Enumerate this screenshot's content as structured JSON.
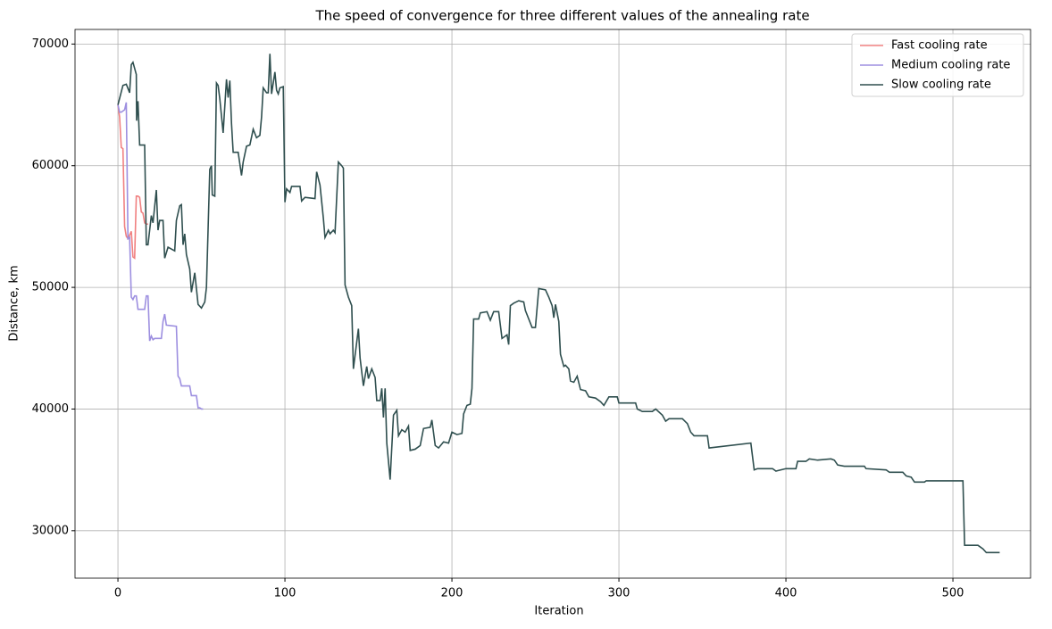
{
  "chart_data": {
    "type": "line",
    "title": "The speed of convergence for three different values of the annealing rate",
    "x_label": "Iteration",
    "y_label": "Distance, km",
    "xlim": [
      -25.7,
      546.5
    ],
    "ylim": [
      26100,
      71200
    ],
    "xticks": [
      0,
      100,
      200,
      300,
      400,
      500
    ],
    "yticks": [
      30000,
      40000,
      50000,
      60000,
      70000
    ],
    "grid": true,
    "legend": "upper right",
    "series": [
      {
        "name": "Fast cooling rate",
        "color": "#f08080",
        "x": [
          0,
          1,
          2,
          3,
          4,
          5,
          6,
          7,
          8,
          9,
          10,
          11,
          12,
          13,
          14,
          15,
          16,
          17,
          18
        ],
        "values": [
          65000,
          64000,
          61500,
          61400,
          55000,
          54200,
          54000,
          54300,
          54600,
          52500,
          52400,
          57500,
          57500,
          57400,
          56200,
          56100,
          55300,
          55200,
          55200
        ]
      },
      {
        "name": "Medium cooling rate",
        "color": "#9d8fe0",
        "x": [
          0,
          1,
          2,
          3,
          4,
          5,
          6,
          7,
          8,
          9,
          10,
          11,
          12,
          16,
          17,
          18,
          19,
          20,
          21,
          22,
          26,
          27,
          28,
          29,
          35,
          36,
          37,
          38,
          43,
          44,
          47,
          48,
          49,
          50,
          51
        ],
        "values": [
          65000,
          64400,
          64400,
          64500,
          64600,
          65200,
          54000,
          54100,
          49200,
          49000,
          49300,
          49300,
          48200,
          48200,
          49300,
          49300,
          45600,
          46000,
          45700,
          45800,
          45800,
          47200,
          47800,
          46900,
          46800,
          42700,
          42500,
          41900,
          41900,
          41100,
          41100,
          40100,
          40100,
          40000,
          40000
        ]
      },
      {
        "name": "Slow cooling rate",
        "color": "#2f4f4f",
        "x": [
          0,
          3,
          5,
          7,
          8,
          9,
          11,
          11.2,
          12,
          13,
          16,
          17,
          18,
          20,
          21,
          23,
          24,
          25,
          27,
          28,
          30,
          34,
          35,
          37,
          38,
          39,
          40,
          41,
          43,
          44,
          46,
          48,
          50,
          52,
          53,
          55,
          56,
          56.5,
          58,
          59,
          60,
          61,
          63,
          65,
          66,
          67,
          68,
          69,
          72,
          74,
          75,
          77,
          79,
          81,
          83,
          85,
          86,
          87,
          89,
          90,
          91,
          92,
          94,
          95,
          96,
          97,
          99,
          100,
          101,
          103,
          104,
          109,
          110,
          112,
          118,
          119,
          121,
          123,
          124,
          126,
          127,
          129,
          130,
          132,
          134,
          135,
          136,
          138,
          140,
          141,
          143,
          144,
          145,
          147,
          149,
          150,
          152,
          154,
          155,
          157,
          158,
          159,
          160,
          161,
          163,
          165,
          167,
          168,
          170,
          172,
          174,
          175,
          178,
          181,
          183,
          187,
          188,
          190,
          192,
          195,
          198,
          200,
          203,
          206,
          207,
          209,
          211,
          212,
          213,
          216,
          217,
          221,
          223,
          225,
          228,
          230,
          233,
          234,
          235,
          237,
          240,
          243,
          244,
          248,
          250,
          252,
          256,
          258,
          260,
          261,
          262,
          264,
          265,
          267,
          268,
          270,
          271,
          273,
          275,
          277,
          280,
          282,
          286,
          289,
          291,
          294,
          299,
          300,
          310,
          311,
          314,
          320,
          322,
          326,
          328,
          330,
          338,
          341,
          343,
          345,
          353,
          354,
          379,
          381,
          383,
          392,
          394,
          400,
          406,
          407,
          412,
          414,
          419,
          427,
          429,
          431,
          435,
          447,
          448,
          460,
          462,
          470,
          472,
          475,
          477,
          483,
          484,
          506,
          507,
          515,
          518,
          520,
          528
        ],
        "values": [
          65000,
          66600,
          66700,
          66000,
          68300,
          68500,
          67500,
          63700,
          65300,
          61700,
          61700,
          53500,
          53500,
          55900,
          55300,
          58000,
          54700,
          55500,
          55500,
          52400,
          53300,
          53000,
          55500,
          56700,
          56800,
          53500,
          54400,
          52700,
          51500,
          49600,
          51200,
          48600,
          48300,
          48800,
          50000,
          59700,
          60000,
          57600,
          57500,
          66800,
          66600,
          65500,
          62700,
          67100,
          65600,
          67000,
          63500,
          61100,
          61100,
          59200,
          60300,
          61600,
          61700,
          63000,
          62300,
          62500,
          64000,
          66400,
          66000,
          66000,
          69200,
          65900,
          67700,
          66200,
          65900,
          66400,
          66500,
          57000,
          58100,
          57800,
          58300,
          58300,
          57100,
          57400,
          57300,
          59500,
          58400,
          55700,
          54100,
          54700,
          54400,
          54700,
          54500,
          60300,
          60000,
          59800,
          50200,
          49200,
          48500,
          43300,
          45500,
          46600,
          44200,
          41900,
          43500,
          42500,
          43300,
          42600,
          40700,
          40700,
          41700,
          39300,
          41700,
          37200,
          34200,
          39500,
          39900,
          37800,
          38300,
          38100,
          38600,
          36600,
          36700,
          37000,
          38400,
          38500,
          39100,
          37000,
          36800,
          37300,
          37200,
          38100,
          37900,
          38000,
          39600,
          40300,
          40400,
          41700,
          47400,
          47400,
          47900,
          48000,
          47300,
          48000,
          48000,
          45800,
          46100,
          45300,
          48500,
          48700,
          48900,
          48800,
          48100,
          46700,
          46700,
          49900,
          49800,
          49200,
          48500,
          47500,
          48600,
          47200,
          44500,
          43500,
          43600,
          43300,
          42300,
          42200,
          42700,
          41600,
          41500,
          41000,
          40900,
          40600,
          40300,
          41000,
          41000,
          40500,
          40500,
          40000,
          39800,
          39800,
          40000,
          39500,
          39000,
          39200,
          39200,
          38800,
          38100,
          37800,
          37800,
          36800,
          37200,
          35000,
          35100,
          35100,
          34900,
          35100,
          35100,
          35700,
          35700,
          35900,
          35800,
          35900,
          35800,
          35400,
          35300,
          35300,
          35100,
          35000,
          34800,
          34800,
          34500,
          34400,
          34000,
          34000,
          34100,
          34100,
          28800,
          28800,
          28500,
          28200,
          28200
        ]
      }
    ]
  }
}
